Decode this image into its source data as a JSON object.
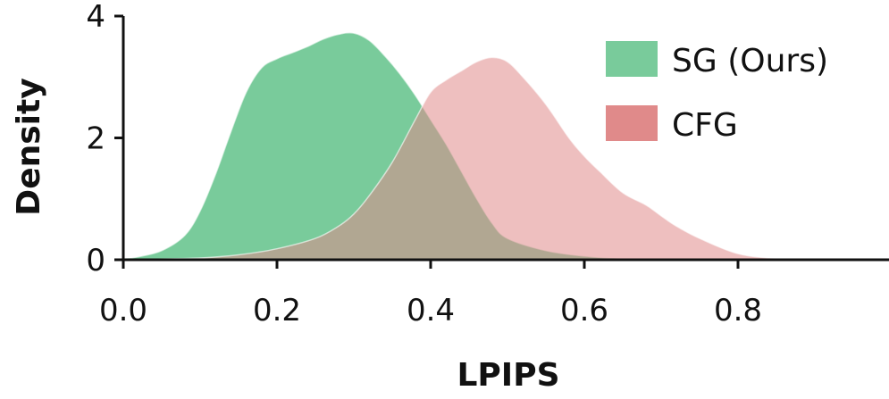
{
  "chart_data": {
    "type": "area",
    "xlabel": "LPIPS",
    "ylabel": "Density",
    "xlim": [
      0.0,
      1.0
    ],
    "ylim": [
      0,
      4
    ],
    "xticks": [
      "0.0",
      "0.2",
      "0.4",
      "0.6",
      "0.8"
    ],
    "yticks": [
      "0",
      "2",
      "4"
    ],
    "legend_position": "top-right",
    "series": [
      {
        "name": "SG (Ours)",
        "color": "#79cb9b",
        "x": [
          0.0,
          0.02,
          0.05,
          0.08,
          0.1,
          0.12,
          0.14,
          0.16,
          0.18,
          0.2,
          0.22,
          0.24,
          0.26,
          0.28,
          0.3,
          0.32,
          0.34,
          0.36,
          0.38,
          0.4,
          0.42,
          0.44,
          0.46,
          0.48,
          0.5,
          0.55,
          0.6,
          0.65,
          0.7,
          0.75,
          0.8
        ],
        "y": [
          0.02,
          0.05,
          0.15,
          0.4,
          0.8,
          1.4,
          2.1,
          2.75,
          3.15,
          3.3,
          3.4,
          3.5,
          3.62,
          3.7,
          3.72,
          3.6,
          3.35,
          3.05,
          2.7,
          2.3,
          1.9,
          1.45,
          1.0,
          0.6,
          0.35,
          0.15,
          0.06,
          0.02,
          0.01,
          0.0,
          0.0
        ]
      },
      {
        "name": "CFG",
        "color": "#e08a8a",
        "x": [
          0.0,
          0.1,
          0.15,
          0.2,
          0.25,
          0.28,
          0.3,
          0.32,
          0.35,
          0.38,
          0.4,
          0.42,
          0.44,
          0.46,
          0.48,
          0.5,
          0.52,
          0.55,
          0.58,
          0.6,
          0.62,
          0.65,
          0.68,
          0.7,
          0.72,
          0.75,
          0.8,
          0.85,
          0.9
        ],
        "y": [
          0.0,
          0.03,
          0.08,
          0.18,
          0.35,
          0.55,
          0.75,
          1.05,
          1.6,
          2.3,
          2.75,
          2.95,
          3.1,
          3.25,
          3.32,
          3.25,
          3.0,
          2.55,
          2.0,
          1.7,
          1.45,
          1.1,
          0.9,
          0.72,
          0.55,
          0.35,
          0.1,
          0.02,
          0.0
        ]
      }
    ]
  }
}
